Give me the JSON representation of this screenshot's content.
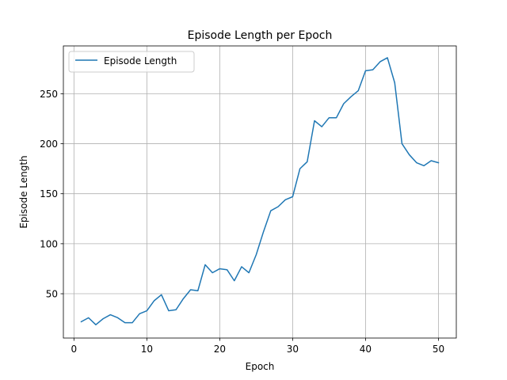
{
  "chart_data": {
    "type": "line",
    "title": "Episode Length per Epoch",
    "xlabel": "Epoch",
    "ylabel": "Episode Length",
    "xlim": [
      -1.45,
      52.45
    ],
    "ylim": [
      5.7,
      297.8
    ],
    "xticks": [
      0,
      10,
      20,
      30,
      40,
      50
    ],
    "yticks": [
      50,
      100,
      150,
      200,
      250
    ],
    "grid": true,
    "legend": {
      "position": "top-left"
    },
    "series": [
      {
        "name": "Episode Length",
        "color": "#1f77b4",
        "x": [
          1,
          2,
          3,
          4,
          5,
          6,
          7,
          8,
          9,
          10,
          11,
          12,
          13,
          14,
          15,
          16,
          17,
          18,
          19,
          20,
          21,
          22,
          23,
          24,
          25,
          26,
          27,
          28,
          29,
          30,
          31,
          32,
          33,
          34,
          35,
          36,
          37,
          38,
          39,
          40,
          41,
          42,
          43,
          44,
          45,
          46,
          47,
          48,
          49,
          50
        ],
        "y": [
          22,
          26,
          19,
          25,
          29,
          26,
          21,
          21,
          30,
          33,
          43,
          49,
          33,
          34,
          45,
          54,
          53,
          79,
          71,
          75,
          74,
          63,
          77,
          71,
          89,
          112,
          133,
          137,
          144,
          147,
          175,
          182,
          223,
          217,
          226,
          226,
          240,
          247,
          253,
          273,
          274,
          282,
          286,
          261,
          200,
          189,
          181,
          178,
          183,
          181
        ]
      }
    ]
  }
}
